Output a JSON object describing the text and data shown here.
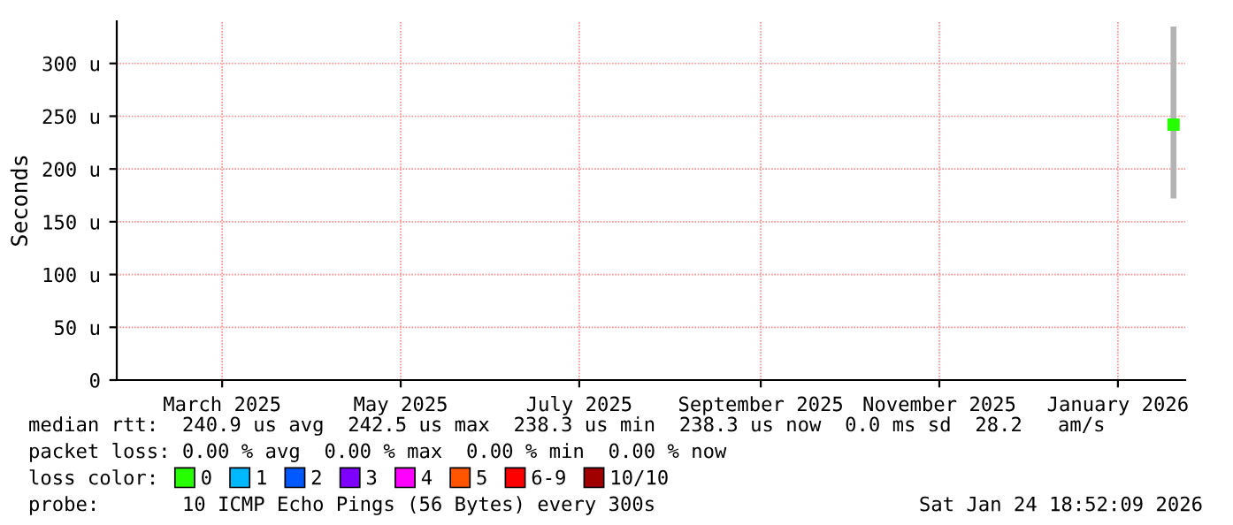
{
  "chart_data": {
    "type": "scatter",
    "ylabel": "Seconds",
    "x": [
      "2026-01-20"
    ],
    "xlim": [
      "2025-01-24",
      "2026-01-24"
    ],
    "xticks": [
      {
        "value": "2025-03-01",
        "label": "March 2025"
      },
      {
        "value": "2025-05-01",
        "label": "May 2025"
      },
      {
        "value": "2025-07-01",
        "label": "July 2025"
      },
      {
        "value": "2025-09-01",
        "label": "September 2025"
      },
      {
        "value": "2025-11-01",
        "label": "November 2025"
      },
      {
        "value": "2026-01-01",
        "label": "January 2026"
      }
    ],
    "ylim": [
      0,
      340
    ],
    "yticks": [
      0,
      {
        "value": 50,
        "label": "50 u"
      },
      {
        "value": 100,
        "label": "100 u"
      },
      {
        "value": 150,
        "label": "150 u"
      },
      {
        "value": 200,
        "label": "200 u"
      },
      {
        "value": 250,
        "label": "250 u"
      },
      {
        "value": 300,
        "label": "300 u"
      }
    ],
    "grid": true,
    "legend": "bottom",
    "marker": "square",
    "series": [
      {
        "type": "bar",
        "color": "#b4b4b4",
        "base": [
          172
        ],
        "values": [
          163
        ]
      },
      {
        "name": "0",
        "color": "#26ff00",
        "values": [
          242
        ]
      },
      {
        "name": "1",
        "color": "#00b8ff",
        "values": [
          null
        ]
      },
      {
        "name": "2",
        "color": "#0059ff",
        "values": [
          null
        ]
      },
      {
        "name": "3",
        "color": "#7e00ff",
        "values": [
          null
        ]
      },
      {
        "name": "4",
        "color": "#ff00ff",
        "values": [
          null
        ]
      },
      {
        "name": "5",
        "color": "#ff5500",
        "values": [
          null
        ]
      },
      {
        "name": "6-9",
        "color": "#ff0000",
        "values": [
          null
        ]
      },
      {
        "name": "10/10",
        "color": "#a10000",
        "values": [
          null
        ]
      }
    ],
    "annotations": [
      "median rtt:  240.9 us avg  242.5 us max  238.3 us min  238.3 us now  0.0 ms sd  28.2   am/s",
      "packet loss: 0.00 % avg  0.00 % max  0.00 % min  0.00 % now",
      "loss color:",
      "probe:       10 ICMP Echo Pings (56 Bytes) every 300s",
      "Sat Jan 24 18:52:09 2026"
    ]
  }
}
